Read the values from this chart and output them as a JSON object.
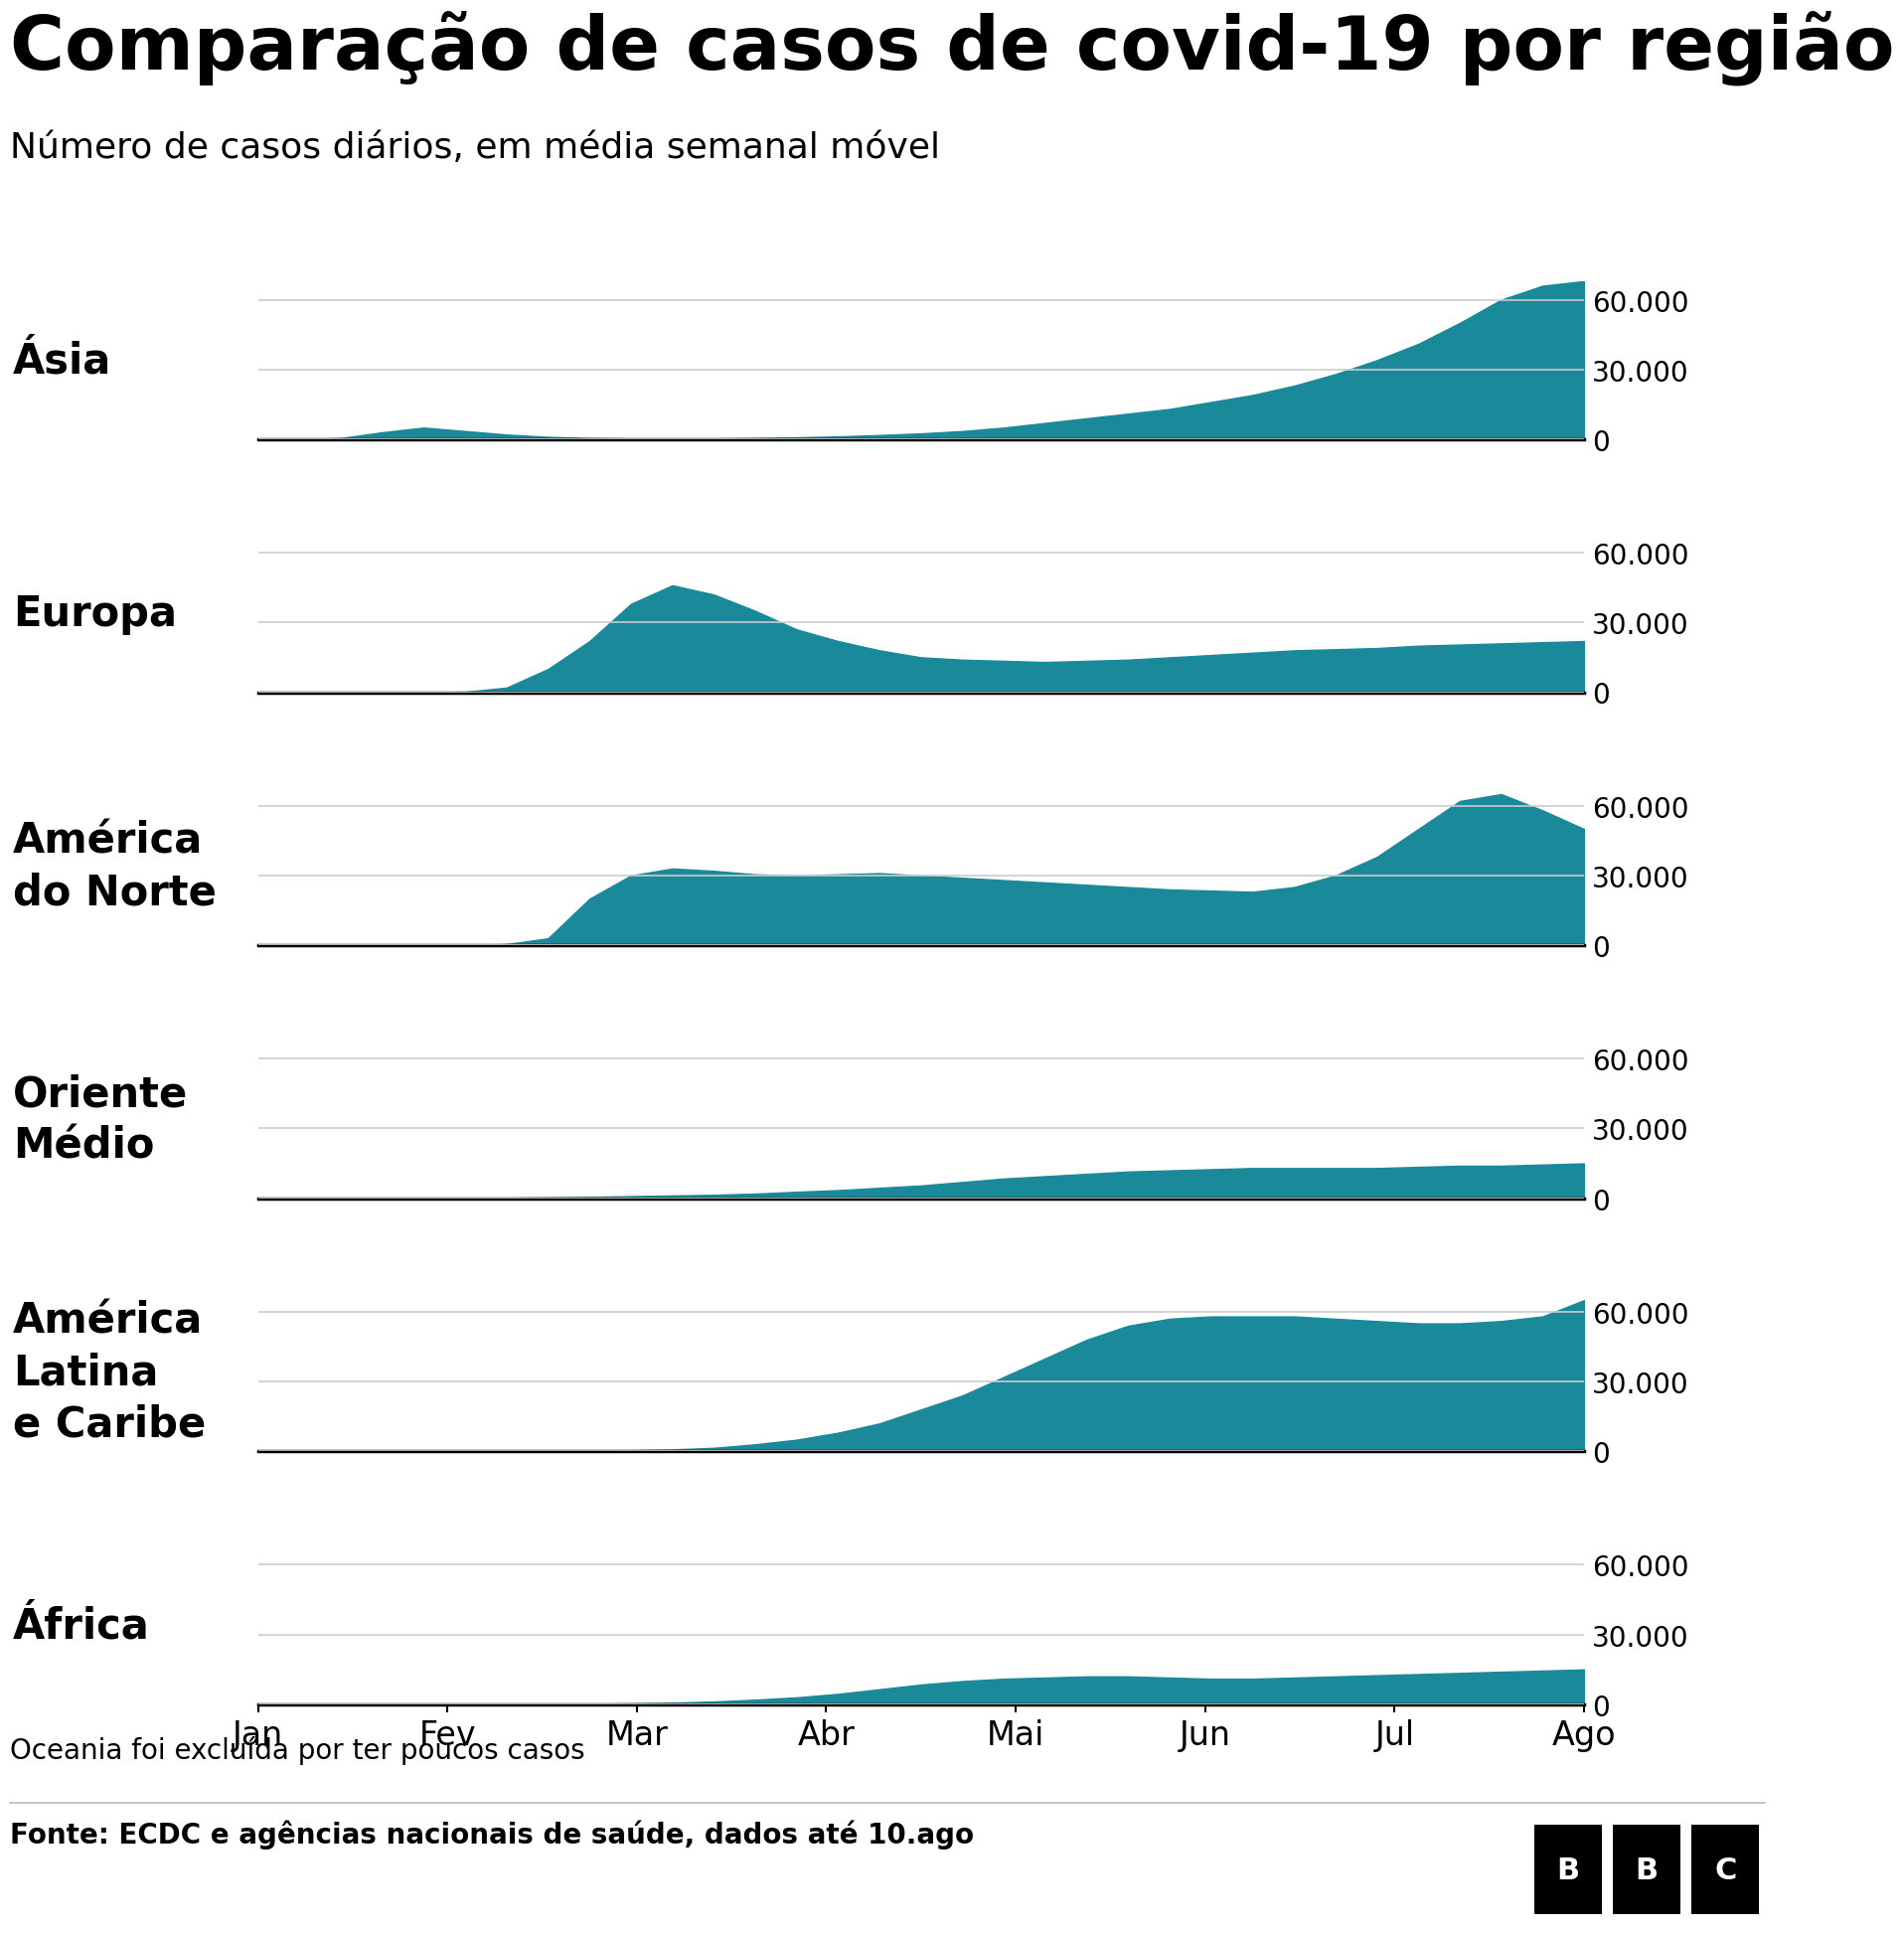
{
  "title": "Comparação de casos de covid-19 por região",
  "subtitle": "Número de casos diários, em média semanal móvel",
  "footnote": "Oceania foi excluída por ter poucos casos",
  "source": "Fonte: ECDC e agências nacionais de saúde, dados até 10.ago",
  "fill_color": "#1a8a9a",
  "background_color": "#ffffff",
  "title_fontsize": 54,
  "subtitle_fontsize": 26,
  "label_fontsize": 30,
  "tick_fontsize": 20,
  "footnote_fontsize": 20,
  "x_labels": [
    "Jan",
    "Fev",
    "Mar",
    "Abr",
    "Mai",
    "Jun",
    "Jul",
    "Ago"
  ],
  "y_ticks": [
    0,
    30000,
    60000
  ],
  "y_tick_labels": [
    "0",
    "30.000",
    "60.000"
  ],
  "ylim": [
    0,
    68000
  ],
  "regions": [
    "Ásia",
    "Europa",
    "América\ndo Norte",
    "Oriente\nMédio",
    "América\nLatina\ne Caribe",
    "África"
  ],
  "series": {
    "Asia": [
      0,
      0,
      500,
      3000,
      5000,
      3500,
      2000,
      1000,
      500,
      300,
      200,
      300,
      500,
      800,
      1200,
      1800,
      2500,
      3500,
      5000,
      7000,
      9000,
      11000,
      13000,
      16000,
      19000,
      23000,
      28000,
      34000,
      41000,
      50000,
      60000,
      66000,
      68000
    ],
    "Europa": [
      0,
      0,
      0,
      0,
      0,
      200,
      2000,
      10000,
      22000,
      38000,
      46000,
      42000,
      35000,
      27000,
      22000,
      18000,
      15000,
      14000,
      13500,
      13000,
      13500,
      14000,
      15000,
      16000,
      17000,
      18000,
      18500,
      19000,
      20000,
      20500,
      21000,
      21500,
      22000
    ],
    "AmericaNorte": [
      0,
      0,
      0,
      0,
      0,
      0,
      500,
      3000,
      20000,
      30000,
      33000,
      32000,
      30500,
      30000,
      30500,
      31000,
      30000,
      29000,
      28000,
      27000,
      26000,
      25000,
      24000,
      23500,
      23000,
      25000,
      30000,
      38000,
      50000,
      62000,
      65000,
      58000,
      50000
    ],
    "OrienteMedio": [
      0,
      0,
      0,
      0,
      0,
      100,
      200,
      400,
      600,
      900,
      1200,
      1500,
      2000,
      2800,
      3500,
      4500,
      5500,
      7000,
      8500,
      9500,
      10500,
      11500,
      12000,
      12500,
      13000,
      13000,
      13000,
      13000,
      13500,
      14000,
      14000,
      14500,
      15000
    ],
    "AmericaLatina": [
      0,
      0,
      0,
      0,
      0,
      0,
      0,
      100,
      200,
      500,
      800,
      1500,
      3000,
      5000,
      8000,
      12000,
      18000,
      24000,
      32000,
      40000,
      48000,
      54000,
      57000,
      58000,
      58000,
      58000,
      57000,
      56000,
      55000,
      55000,
      56000,
      58000,
      65000
    ],
    "Africa": [
      0,
      0,
      0,
      0,
      0,
      0,
      0,
      100,
      200,
      400,
      700,
      1200,
      2000,
      3000,
      4500,
      6500,
      8500,
      10000,
      11000,
      11500,
      12000,
      12000,
      11500,
      11000,
      11000,
      11500,
      12000,
      12500,
      13000,
      13500,
      14000,
      14500,
      15000
    ]
  },
  "n_points": 33
}
